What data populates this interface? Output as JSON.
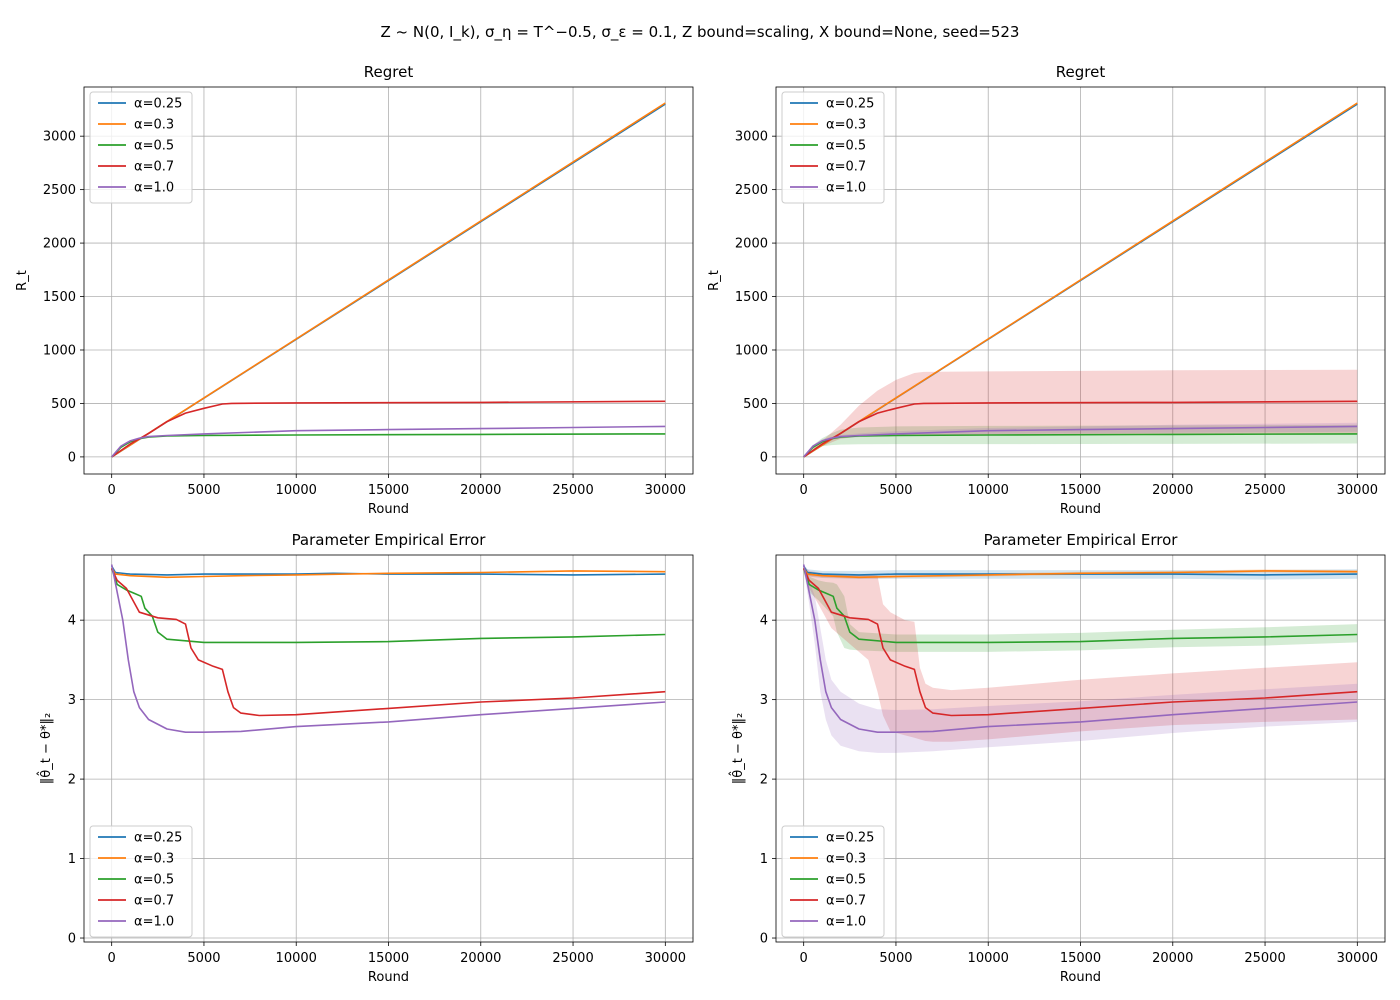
{
  "figure": {
    "suptitle": "Z ~ N(0, I_k), σ_η = T^−0.5, σ_ε = 0.1, Z bound=scaling, X bound=None, seed=523"
  },
  "series_colors": {
    "α=0.25": "#1f77b4",
    "α=0.3": "#ff7f0e",
    "α=0.5": "#2ca02c",
    "α=0.7": "#d62728",
    "α=1.0": "#9467bd"
  },
  "chart_data": [
    {
      "id": "regret-mean",
      "type": "line",
      "title": "Regret",
      "xlabel": "Round",
      "ylabel": "R_t",
      "xlim": [
        -1500,
        31500
      ],
      "ylim": [
        -160,
        3460
      ],
      "xticks": [
        0,
        5000,
        10000,
        15000,
        20000,
        25000,
        30000
      ],
      "yticks": [
        0,
        500,
        1000,
        1500,
        2000,
        2500,
        3000
      ],
      "grid": true,
      "legend": {
        "position": "upper-left",
        "entries": [
          "α=0.25",
          "α=0.3",
          "α=0.5",
          "α=0.7",
          "α=1.0"
        ]
      },
      "series": [
        {
          "name": "α=0.25",
          "x": [
            0,
            30000
          ],
          "y": [
            0,
            3300
          ]
        },
        {
          "name": "α=0.3",
          "x": [
            0,
            30000
          ],
          "y": [
            0,
            3310
          ]
        },
        {
          "name": "α=0.5",
          "x": [
            0,
            500,
            1000,
            1500,
            2000,
            3000,
            5000,
            10000,
            20000,
            30000
          ],
          "y": [
            0,
            90,
            140,
            170,
            185,
            195,
            200,
            205,
            210,
            215
          ]
        },
        {
          "name": "α=0.7",
          "x": [
            0,
            1000,
            2000,
            3000,
            4000,
            5000,
            6000,
            6500,
            10000,
            20000,
            30000
          ],
          "y": [
            0,
            120,
            220,
            330,
            410,
            455,
            495,
            500,
            505,
            510,
            520
          ]
        },
        {
          "name": "α=1.0",
          "x": [
            0,
            500,
            1000,
            1500,
            2000,
            3000,
            5000,
            10000,
            15000,
            20000,
            25000,
            30000
          ],
          "y": [
            0,
            100,
            150,
            175,
            190,
            200,
            215,
            245,
            255,
            265,
            275,
            285
          ]
        }
      ]
    },
    {
      "id": "regret-band",
      "type": "area",
      "title": "Regret",
      "xlabel": "Round",
      "ylabel": "R_t",
      "xlim": [
        -1500,
        31500
      ],
      "ylim": [
        -160,
        3460
      ],
      "xticks": [
        0,
        5000,
        10000,
        15000,
        20000,
        25000,
        30000
      ],
      "yticks": [
        0,
        500,
        1000,
        1500,
        2000,
        2500,
        3000
      ],
      "grid": true,
      "legend": {
        "position": "upper-left",
        "entries": [
          "α=0.25",
          "α=0.3",
          "α=0.5",
          "α=0.7",
          "α=1.0"
        ]
      },
      "series": [
        {
          "name": "α=0.25",
          "x": [
            0,
            30000
          ],
          "y": [
            0,
            3300
          ]
        },
        {
          "name": "α=0.3",
          "x": [
            0,
            30000
          ],
          "y": [
            0,
            3310
          ]
        },
        {
          "name": "α=0.5",
          "x": [
            0,
            500,
            1000,
            1500,
            2000,
            3000,
            5000,
            10000,
            20000,
            30000
          ],
          "y": [
            0,
            90,
            140,
            170,
            185,
            195,
            200,
            205,
            210,
            215
          ],
          "band_low": [
            0,
            70,
            100,
            110,
            115,
            118,
            120,
            120,
            122,
            125
          ],
          "band_high": [
            0,
            110,
            175,
            220,
            255,
            275,
            285,
            290,
            295,
            300
          ]
        },
        {
          "name": "α=0.7",
          "x": [
            0,
            1000,
            2000,
            3000,
            4000,
            5000,
            6000,
            6500,
            10000,
            20000,
            30000
          ],
          "y": [
            0,
            120,
            220,
            330,
            410,
            455,
            495,
            500,
            505,
            510,
            520
          ],
          "band_low": [
            0,
            100,
            170,
            190,
            200,
            205,
            205,
            205,
            210,
            215,
            220
          ],
          "band_high": [
            0,
            150,
            300,
            480,
            620,
            720,
            785,
            795,
            800,
            810,
            815
          ]
        },
        {
          "name": "α=1.0",
          "x": [
            0,
            500,
            1000,
            1500,
            2000,
            3000,
            5000,
            10000,
            15000,
            20000,
            25000,
            30000
          ],
          "y": [
            0,
            100,
            150,
            175,
            190,
            200,
            215,
            245,
            255,
            265,
            275,
            285
          ],
          "band_low": [
            0,
            90,
            135,
            160,
            175,
            185,
            195,
            215,
            220,
            225,
            230,
            235
          ],
          "band_high": [
            0,
            110,
            165,
            190,
            205,
            220,
            240,
            270,
            285,
            300,
            310,
            320
          ]
        }
      ]
    },
    {
      "id": "error-mean",
      "type": "line",
      "title": "Parameter Empirical Error",
      "xlabel": "Round",
      "ylabel": "‖θ̂_t − θ*‖₂",
      "xlim": [
        -1500,
        31500
      ],
      "ylim": [
        -0.05,
        4.82
      ],
      "xticks": [
        0,
        5000,
        10000,
        15000,
        20000,
        25000,
        30000
      ],
      "yticks": [
        0,
        1,
        2,
        3,
        4
      ],
      "grid": true,
      "legend": {
        "position": "lower-left",
        "entries": [
          "α=0.25",
          "α=0.3",
          "α=0.5",
          "α=0.7",
          "α=1.0"
        ]
      },
      "series": [
        {
          "name": "α=0.25",
          "x": [
            0,
            200,
            1000,
            3000,
            5000,
            7000,
            10000,
            12000,
            15000,
            20000,
            25000,
            30000
          ],
          "y": [
            4.68,
            4.6,
            4.58,
            4.57,
            4.58,
            4.58,
            4.58,
            4.59,
            4.58,
            4.58,
            4.57,
            4.58
          ]
        },
        {
          "name": "α=0.3",
          "x": [
            0,
            200,
            1000,
            3000,
            5000,
            7000,
            10000,
            15000,
            20000,
            25000,
            30000
          ],
          "y": [
            4.66,
            4.58,
            4.56,
            4.54,
            4.55,
            4.56,
            4.57,
            4.59,
            4.6,
            4.62,
            4.61
          ]
        },
        {
          "name": "α=0.5",
          "x": [
            0,
            300,
            800,
            1200,
            1600,
            1800,
            2200,
            2500,
            3000,
            5000,
            10000,
            15000,
            20000,
            25000,
            30000
          ],
          "y": [
            4.65,
            4.45,
            4.38,
            4.34,
            4.3,
            4.15,
            4.05,
            3.85,
            3.76,
            3.72,
            3.72,
            3.73,
            3.77,
            3.79,
            3.82
          ]
        },
        {
          "name": "α=0.7",
          "x": [
            0,
            300,
            800,
            1500,
            2500,
            3500,
            4000,
            4300,
            4700,
            5500,
            6000,
            6300,
            6600,
            7000,
            8000,
            10000,
            15000,
            20000,
            25000,
            30000
          ],
          "y": [
            4.65,
            4.5,
            4.4,
            4.1,
            4.03,
            4.01,
            3.95,
            3.65,
            3.5,
            3.42,
            3.38,
            3.1,
            2.9,
            2.83,
            2.8,
            2.81,
            2.89,
            2.97,
            3.02,
            3.1
          ]
        },
        {
          "name": "α=1.0",
          "x": [
            0,
            300,
            600,
            900,
            1200,
            1500,
            2000,
            3000,
            4000,
            5000,
            7000,
            10000,
            15000,
            20000,
            25000,
            30000
          ],
          "y": [
            4.7,
            4.35,
            4.0,
            3.5,
            3.1,
            2.9,
            2.75,
            2.63,
            2.59,
            2.59,
            2.6,
            2.66,
            2.72,
            2.81,
            2.89,
            2.97
          ]
        }
      ]
    },
    {
      "id": "error-band",
      "type": "area",
      "title": "Parameter Empirical Error",
      "xlabel": "Round",
      "ylabel": "‖θ̂_t − θ*‖₂",
      "xlim": [
        -1500,
        31500
      ],
      "ylim": [
        -0.05,
        4.82
      ],
      "xticks": [
        0,
        5000,
        10000,
        15000,
        20000,
        25000,
        30000
      ],
      "yticks": [
        0,
        1,
        2,
        3,
        4
      ],
      "grid": true,
      "legend": {
        "position": "lower-left",
        "entries": [
          "α=0.25",
          "α=0.3",
          "α=0.5",
          "α=0.7",
          "α=1.0"
        ]
      },
      "series": [
        {
          "name": "α=0.25",
          "x": [
            0,
            200,
            1000,
            3000,
            5000,
            10000,
            15000,
            20000,
            25000,
            30000
          ],
          "y": [
            4.68,
            4.6,
            4.58,
            4.57,
            4.58,
            4.58,
            4.58,
            4.58,
            4.57,
            4.58
          ],
          "band_low": [
            4.66,
            4.55,
            4.53,
            4.52,
            4.52,
            4.52,
            4.52,
            4.52,
            4.51,
            4.52
          ],
          "band_high": [
            4.7,
            4.64,
            4.62,
            4.62,
            4.63,
            4.63,
            4.63,
            4.63,
            4.63,
            4.64
          ]
        },
        {
          "name": "α=0.3",
          "x": [
            0,
            200,
            1000,
            3000,
            5000,
            10000,
            15000,
            20000,
            25000,
            30000
          ],
          "y": [
            4.66,
            4.58,
            4.56,
            4.54,
            4.55,
            4.57,
            4.59,
            4.6,
            4.62,
            4.61
          ],
          "band_low": [
            4.64,
            4.56,
            4.54,
            4.52,
            4.53,
            4.55,
            4.57,
            4.58,
            4.6,
            4.59
          ],
          "band_high": [
            4.68,
            4.6,
            4.58,
            4.56,
            4.57,
            4.59,
            4.61,
            4.62,
            4.64,
            4.63
          ]
        },
        {
          "name": "α=0.5",
          "x": [
            0,
            300,
            800,
            1200,
            1600,
            1800,
            2200,
            2500,
            3000,
            5000,
            10000,
            15000,
            20000,
            25000,
            30000
          ],
          "y": [
            4.65,
            4.45,
            4.38,
            4.34,
            4.3,
            4.15,
            4.05,
            3.85,
            3.76,
            3.72,
            3.72,
            3.73,
            3.77,
            3.79,
            3.82
          ],
          "band_low": [
            4.6,
            4.35,
            4.25,
            4.15,
            4.05,
            3.85,
            3.65,
            3.63,
            3.62,
            3.6,
            3.6,
            3.62,
            3.66,
            3.68,
            3.72
          ],
          "band_high": [
            4.68,
            4.55,
            4.5,
            4.48,
            4.47,
            4.45,
            4.3,
            3.95,
            3.85,
            3.82,
            3.82,
            3.84,
            3.88,
            3.91,
            3.95
          ]
        },
        {
          "name": "α=0.7",
          "x": [
            0,
            300,
            800,
            1500,
            2500,
            3500,
            4000,
            4300,
            4700,
            5500,
            6000,
            6300,
            6600,
            7000,
            8000,
            10000,
            15000,
            20000,
            25000,
            30000
          ],
          "y": [
            4.65,
            4.5,
            4.4,
            4.1,
            4.03,
            4.01,
            3.95,
            3.65,
            3.5,
            3.42,
            3.38,
            3.1,
            2.9,
            2.83,
            2.8,
            2.81,
            2.89,
            2.97,
            3.02,
            3.1
          ],
          "band_low": [
            4.6,
            4.4,
            4.2,
            3.9,
            3.7,
            3.5,
            3.1,
            2.8,
            2.6,
            2.55,
            2.52,
            2.5,
            2.48,
            2.47,
            2.47,
            2.5,
            2.6,
            2.68,
            2.72,
            2.75
          ],
          "band_high": [
            4.68,
            4.62,
            4.6,
            4.58,
            4.57,
            4.57,
            4.56,
            4.2,
            4.1,
            4.0,
            3.98,
            3.4,
            3.2,
            3.15,
            3.12,
            3.15,
            3.25,
            3.33,
            3.4,
            3.47
          ]
        },
        {
          "name": "α=1.0",
          "x": [
            0,
            300,
            600,
            900,
            1200,
            1500,
            2000,
            3000,
            4000,
            5000,
            7000,
            10000,
            15000,
            20000,
            25000,
            30000
          ],
          "y": [
            4.7,
            4.35,
            4.0,
            3.5,
            3.1,
            2.9,
            2.75,
            2.63,
            2.59,
            2.59,
            2.6,
            2.66,
            2.72,
            2.81,
            2.89,
            2.97
          ],
          "band_low": [
            4.65,
            4.2,
            3.7,
            3.1,
            2.75,
            2.55,
            2.42,
            2.35,
            2.33,
            2.33,
            2.35,
            2.4,
            2.48,
            2.58,
            2.66,
            2.72
          ],
          "band_high": [
            4.72,
            4.5,
            4.3,
            3.9,
            3.5,
            3.25,
            3.1,
            2.95,
            2.88,
            2.87,
            2.88,
            2.92,
            2.98,
            3.06,
            3.13,
            3.2
          ]
        }
      ]
    }
  ]
}
